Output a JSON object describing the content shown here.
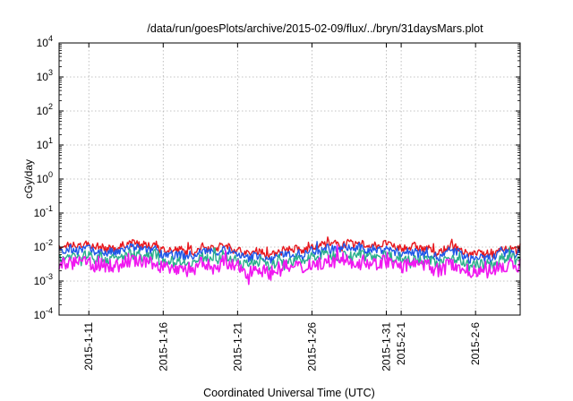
{
  "chart_data": {
    "type": "line",
    "title": "/data/run/goesPlots/archive/2015-02-09/flux/../bryn/31daysMars.plot",
    "xlabel": "Coordinated Universal Time (UTC)",
    "ylabel": "cGy/day",
    "yscale": "log",
    "ylim": [
      0.0001,
      10000
    ],
    "xlim": [
      "2015-01-09",
      "2015-02-09"
    ],
    "grid": true,
    "legend": "none",
    "x_ticks": [
      "2015-1-11",
      "2015-1-16",
      "2015-1-21",
      "2015-1-26",
      "2015-1-31",
      "2015-2-1",
      "2015-2-6"
    ],
    "y_ticks": [
      {
        "base": "10",
        "exp": "-4",
        "value": 0.0001
      },
      {
        "base": "10",
        "exp": "-3",
        "value": 0.001
      },
      {
        "base": "10",
        "exp": "-2",
        "value": 0.01
      },
      {
        "base": "10",
        "exp": "-1",
        "value": 0.1
      },
      {
        "base": "10",
        "exp": "0",
        "value": 1
      },
      {
        "base": "10",
        "exp": "1",
        "value": 10
      },
      {
        "base": "10",
        "exp": "2",
        "value": 100
      },
      {
        "base": "10",
        "exp": "3",
        "value": 1000
      },
      {
        "base": "10",
        "exp": "4",
        "value": 10000
      }
    ],
    "series": [
      {
        "color": "#e8181e",
        "level": 0.009,
        "spread": 0.22
      },
      {
        "color": "#1f57e8",
        "level": 0.0066,
        "spread": 0.25
      },
      {
        "color": "#2aaf8c",
        "level": 0.0043,
        "spread": 0.3
      },
      {
        "color": "#f018f0",
        "level": 0.0027,
        "spread": 0.42
      }
    ]
  }
}
